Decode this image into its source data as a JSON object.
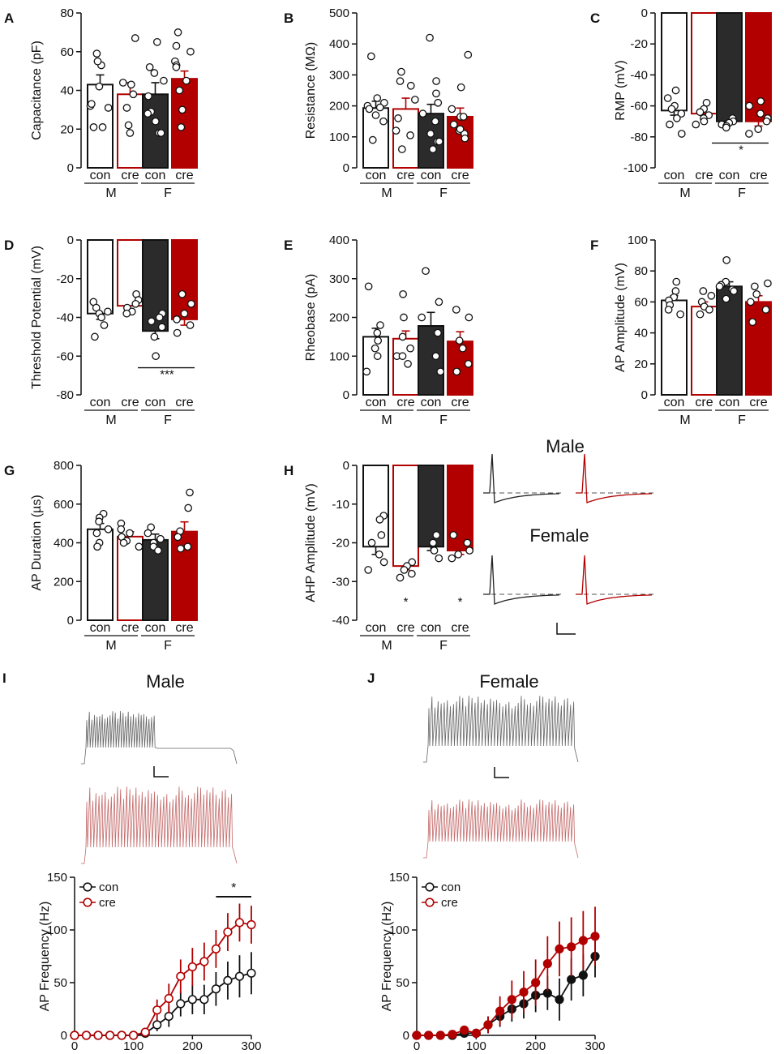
{
  "colors": {
    "con_m": "#ffffff",
    "cre_m": "#ffffff",
    "con_f": "#2b2b2b",
    "cre_f": "#b20000",
    "edge_con": "#111111",
    "edge_cre": "#b20000",
    "trace_con": "#666666",
    "trace_cre": "#c46a6a"
  },
  "groups": {
    "sub": [
      "con",
      "cre",
      "con",
      "cre"
    ],
    "sex": [
      "M",
      "F"
    ]
  },
  "chart_data": [
    {
      "id": "A",
      "type": "bar",
      "panel": "A",
      "ylabel": "Capacitance (pF)",
      "ylim": [
        0,
        80
      ],
      "yticks": [
        "0",
        "20",
        "40",
        "60",
        "80"
      ],
      "yticks_v": [
        0,
        20,
        40,
        60,
        80
      ],
      "values": [
        43,
        38,
        38,
        46
      ],
      "sem": [
        5,
        6,
        6,
        4
      ],
      "points": [
        [
          32,
          31,
          33,
          53,
          55,
          42,
          21,
          21,
          59
        ],
        [
          67,
          43,
          38,
          22,
          44,
          31,
          18
        ],
        [
          65,
          45,
          49,
          52,
          18,
          18,
          29,
          24,
          37,
          28
        ],
        [
          70,
          63,
          60,
          55,
          53,
          52,
          45,
          40,
          30,
          21
        ]
      ],
      "sig": []
    },
    {
      "id": "B",
      "type": "bar",
      "panel": "B",
      "ylabel": "Resistance (MΩ)",
      "ylim": [
        0,
        500
      ],
      "yticks": [
        "0",
        "100",
        "200",
        "300",
        "400",
        "500"
      ],
      "yticks_v": [
        0,
        100,
        200,
        300,
        400,
        500
      ],
      "values": [
        193,
        190,
        175,
        165
      ],
      "sem": [
        22,
        35,
        30,
        28
      ],
      "points": [
        [
          360,
          210,
          200,
          190,
          170,
          150,
          90,
          225,
          195
        ],
        [
          310,
          265,
          220,
          160,
          120,
          105,
          60,
          280
        ],
        [
          420,
          280,
          240,
          210,
          175,
          150,
          85,
          85,
          60,
          110
        ],
        [
          365,
          260,
          190,
          165,
          140,
          120,
          110,
          95,
          125,
          165
        ]
      ],
      "sig": []
    },
    {
      "id": "C",
      "type": "bar",
      "panel": "C",
      "ylabel": "RMP (mV)",
      "ylim": [
        -100,
        0
      ],
      "yticks": [
        "0",
        "-20",
        "-40",
        "-60",
        "-80",
        "-100"
      ],
      "yticks_v": [
        0,
        -20,
        -40,
        -60,
        -80,
        -100
      ],
      "values": [
        -63,
        -65,
        -70,
        -70
      ],
      "sem": [
        3,
        2,
        1,
        3
      ],
      "points": [
        [
          -50,
          -55,
          -60,
          -62,
          -65,
          -68,
          -72,
          -78
        ],
        [
          -58,
          -62,
          -64,
          -66,
          -68,
          -70,
          -72
        ],
        [
          -68,
          -70,
          -71,
          -72,
          -73,
          -74
        ],
        [
          -57,
          -60,
          -65,
          -68,
          -70,
          -75,
          -78
        ]
      ],
      "sig": [
        {
          "from": 2,
          "to": 3,
          "label": "*"
        }
      ]
    },
    {
      "id": "D",
      "type": "bar",
      "panel": "D",
      "ylabel": "Threshold Potential (mV)",
      "ylim": [
        -80,
        0
      ],
      "yticks": [
        "0",
        "-20",
        "-40",
        "-60",
        "-80"
      ],
      "yticks_v": [
        0,
        -20,
        -40,
        -60,
        -80
      ],
      "values": [
        -38,
        -34,
        -47,
        -41
      ],
      "sem": [
        3,
        2,
        4,
        3
      ],
      "points": [
        [
          -32,
          -35,
          -37,
          -38,
          -40,
          -44,
          -50
        ],
        [
          -28,
          -31,
          -33,
          -35,
          -37,
          -38
        ],
        [
          -38,
          -40,
          -42,
          -45,
          -50,
          -60
        ],
        [
          -28,
          -33,
          -38,
          -41,
          -44,
          -48
        ]
      ],
      "sig": [
        {
          "from": 2,
          "to": 3,
          "label": "***"
        }
      ]
    },
    {
      "id": "E",
      "type": "bar",
      "panel": "E",
      "ylabel": "Rheobase (pA)",
      "ylim": [
        0,
        400
      ],
      "yticks": [
        "0",
        "100",
        "200",
        "300",
        "400"
      ],
      "yticks_v": [
        0,
        100,
        200,
        300,
        400
      ],
      "values": [
        150,
        145,
        178,
        138
      ],
      "sem": [
        22,
        20,
        35,
        25
      ],
      "points": [
        [
          280,
          180,
          160,
          140,
          120,
          100,
          60
        ],
        [
          260,
          200,
          150,
          120,
          100,
          100,
          80
        ],
        [
          320,
          240,
          200,
          160,
          100,
          60
        ],
        [
          220,
          200,
          140,
          120,
          80,
          60
        ]
      ],
      "sig": []
    },
    {
      "id": "F",
      "type": "bar",
      "panel": "F",
      "ylabel": "AP Amplitude (mV)",
      "ylim": [
        0,
        100
      ],
      "yticks": [
        "0",
        "20",
        "40",
        "60",
        "80",
        "100"
      ],
      "yticks_v": [
        0,
        20,
        40,
        60,
        80,
        100
      ],
      "values": [
        61,
        57,
        70,
        60
      ],
      "sem": [
        3,
        3,
        3,
        4
      ],
      "points": [
        [
          73,
          67,
          63,
          61,
          58,
          55,
          52
        ],
        [
          67,
          64,
          60,
          57,
          55,
          52
        ],
        [
          87,
          73,
          71,
          70,
          68,
          67,
          62
        ],
        [
          72,
          70,
          65,
          60,
          55,
          47
        ]
      ],
      "sig": []
    },
    {
      "id": "G",
      "type": "bar",
      "panel": "G",
      "ylabel": "AP Duration (µs)",
      "ylim": [
        0,
        800
      ],
      "yticks": [
        "0",
        "200",
        "400",
        "600",
        "800"
      ],
      "yticks_v": [
        0,
        200,
        400,
        600,
        800
      ],
      "values": [
        470,
        432,
        415,
        458
      ],
      "sem": [
        30,
        25,
        30,
        50
      ],
      "points": [
        [
          550,
          530,
          510,
          470,
          450,
          400,
          380
        ],
        [
          500,
          470,
          450,
          430,
          410,
          400,
          380
        ],
        [
          480,
          450,
          420,
          400,
          380,
          360
        ],
        [
          660,
          580,
          460,
          430,
          380,
          370
        ]
      ],
      "sig": []
    },
    {
      "id": "H",
      "type": "bar",
      "panel": "H",
      "ylabel": "AHP Amplitude (mV)",
      "ylim": [
        -40,
        0
      ],
      "yticks": [
        "0",
        "-10",
        "-20",
        "-30",
        "-40"
      ],
      "yticks_v": [
        0,
        -10,
        -20,
        -30,
        -40
      ],
      "values": [
        -21,
        -26,
        -21,
        -22
      ],
      "sem": [
        2,
        1,
        1,
        1
      ],
      "points": [
        [
          -13,
          -14,
          -18,
          -20,
          -23,
          -25,
          -27
        ],
        [
          -25,
          -26,
          -27,
          -28,
          -29
        ],
        [
          -18,
          -20,
          -22,
          -24
        ],
        [
          -18,
          -20,
          -22,
          -23,
          -24
        ]
      ],
      "sig": [
        {
          "group": 1,
          "label": "*"
        },
        {
          "group": 3,
          "label": "*"
        }
      ]
    },
    {
      "id": "I",
      "type": "line",
      "panel": "I",
      "title": "Male",
      "legend": [
        "con",
        "cre"
      ],
      "xlim": [
        0,
        300
      ],
      "ylim": [
        0,
        150
      ],
      "xticks": [
        "0",
        "100",
        "200",
        "300"
      ],
      "xticks_v": [
        0,
        100,
        200,
        300
      ],
      "yticks": [
        "0",
        "50",
        "100",
        "150"
      ],
      "yticks_v": [
        0,
        50,
        100,
        150
      ],
      "ylabel": "AP Frequency (Hz)",
      "x": [
        0,
        20,
        40,
        60,
        80,
        100,
        120,
        140,
        160,
        180,
        200,
        220,
        240,
        260,
        280,
        300
      ],
      "series": [
        {
          "name": "con",
          "values": [
            0,
            0,
            0,
            0,
            0,
            0,
            2,
            10,
            18,
            30,
            34,
            34,
            44,
            52,
            56,
            59
          ],
          "sem": [
            0,
            0,
            0,
            0,
            0,
            0,
            2,
            6,
            10,
            12,
            14,
            14,
            16,
            18,
            20,
            20
          ]
        },
        {
          "name": "cre",
          "values": [
            0,
            0,
            0,
            0,
            0,
            0,
            3,
            24,
            35,
            56,
            65,
            70,
            82,
            98,
            107,
            105
          ],
          "sem": [
            0,
            0,
            0,
            0,
            0,
            0,
            3,
            10,
            14,
            16,
            18,
            18,
            18,
            18,
            18,
            18
          ]
        }
      ],
      "sig": {
        "from": 240,
        "to": 300,
        "label": "*"
      }
    },
    {
      "id": "J",
      "type": "line",
      "panel": "J",
      "title": "Female",
      "legend": [
        "con",
        "cre"
      ],
      "xlim": [
        0,
        300
      ],
      "ylim": [
        0,
        150
      ],
      "xticks": [
        "0",
        "100",
        "200",
        "300"
      ],
      "xticks_v": [
        0,
        100,
        200,
        300
      ],
      "yticks": [
        "0",
        "50",
        "100",
        "150"
      ],
      "yticks_v": [
        0,
        50,
        100,
        150
      ],
      "ylabel": "AP Frequency (Hz)",
      "x": [
        0,
        20,
        40,
        60,
        80,
        100,
        120,
        140,
        160,
        180,
        200,
        220,
        240,
        260,
        280,
        300
      ],
      "series": [
        {
          "name": "con",
          "values": [
            0,
            0,
            0,
            0,
            2,
            2,
            10,
            18,
            25,
            30,
            38,
            40,
            34,
            53,
            57,
            75
          ],
          "sem": [
            0,
            0,
            0,
            0,
            2,
            2,
            8,
            10,
            12,
            14,
            16,
            16,
            20,
            20,
            20,
            20
          ]
        },
        {
          "name": "cre",
          "values": [
            0,
            0,
            0,
            1,
            5,
            2,
            10,
            23,
            34,
            41,
            50,
            68,
            82,
            84,
            90,
            94
          ],
          "sem": [
            0,
            0,
            0,
            2,
            4,
            3,
            8,
            14,
            18,
            20,
            22,
            26,
            26,
            28,
            28,
            28
          ]
        }
      ]
    }
  ],
  "trace_labels": {
    "male": "Male",
    "female": "Female"
  }
}
